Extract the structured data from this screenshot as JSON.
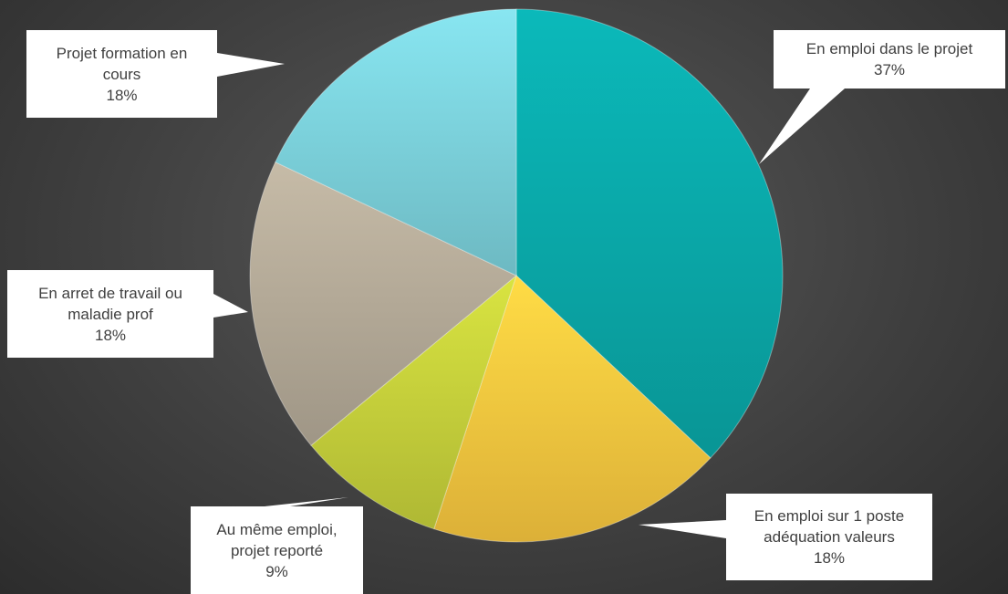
{
  "chart_data": {
    "type": "pie",
    "title": "",
    "slices": [
      {
        "label": "En emploi dans le projet",
        "percent_label": "37%",
        "value": 37,
        "color": "#0aa5a6"
      },
      {
        "label": "En emploi sur 1 poste adéquation valeurs",
        "percent_label": "18%",
        "value": 18,
        "color": "#f4c43e"
      },
      {
        "label": "Au même emploi, projet reporté",
        "percent_label": "9%",
        "value": 9,
        "color": "#c2cc3a"
      },
      {
        "label": "En arret de travail ou maladie prof",
        "percent_label": "18%",
        "value": 18,
        "color": "#b1a795"
      },
      {
        "label": "Projet formation en cours",
        "percent_label": "18%",
        "value": 18,
        "color": "#79cdd7"
      }
    ],
    "labels": [
      {
        "lines": [
          "En emploi dans le projet"
        ],
        "percent": "37%"
      },
      {
        "lines": [
          "En emploi sur 1 poste",
          "adéquation valeurs"
        ],
        "percent": "18%"
      },
      {
        "lines": [
          "Au même emploi,",
          "projet reporté"
        ],
        "percent": "9%"
      },
      {
        "lines": [
          "En arret de travail ou",
          "maladie prof"
        ],
        "percent": "18%"
      },
      {
        "lines": [
          "Projet formation en",
          "cours"
        ],
        "percent": "18%"
      }
    ]
  }
}
